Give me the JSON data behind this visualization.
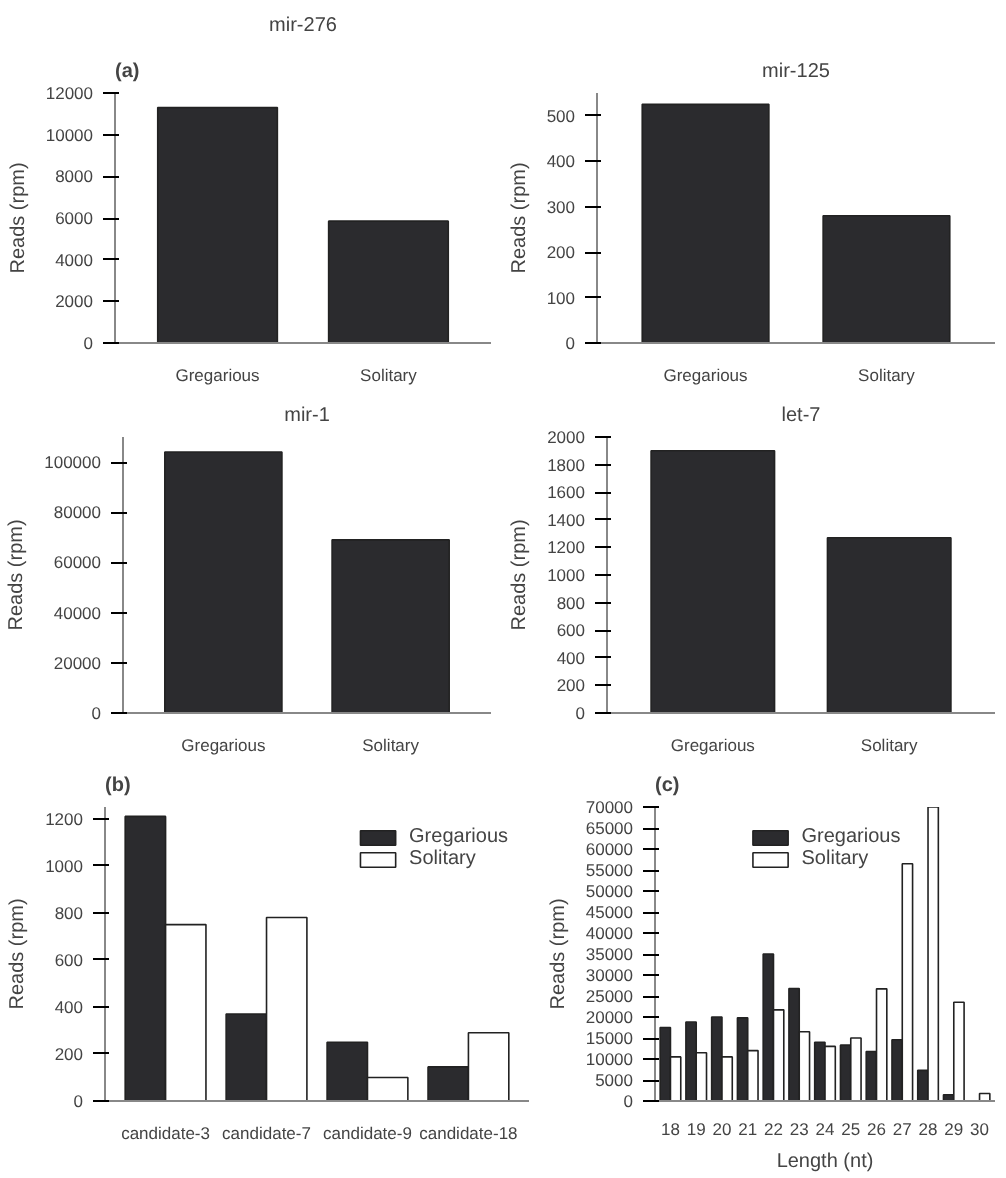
{
  "chart_data": [
    {
      "type": "bar",
      "title": "mir-276",
      "annotations": [
        "(a)"
      ],
      "ylabel": "Reads (rpm)",
      "categories": [
        "Gregarious",
        "Solitary"
      ],
      "values": [
        11300,
        5850
      ],
      "color": "#2b2b2e",
      "ylim": [
        0,
        12000
      ],
      "yticks": [
        0,
        2000,
        4000,
        6000,
        8000,
        10000,
        12000
      ]
    },
    {
      "type": "bar",
      "title": "mir-125",
      "ylabel": "Reads (rpm)",
      "categories": [
        "Gregarious",
        "Solitary"
      ],
      "values": [
        525,
        280
      ],
      "color": "#2b2b2e",
      "ylim": [
        0,
        550
      ],
      "yticks": [
        0,
        100,
        200,
        300,
        400,
        500
      ]
    },
    {
      "type": "bar",
      "title": "mir-1",
      "ylabel": "Reads (rpm)",
      "categories": [
        "Gregarious",
        "Solitary"
      ],
      "values": [
        104000,
        69000
      ],
      "color": "#2b2b2e",
      "ylim": [
        0,
        110000
      ],
      "yticks": [
        0,
        20000,
        40000,
        60000,
        80000,
        100000
      ]
    },
    {
      "type": "bar",
      "title": "let-7",
      "ylabel": "Reads (rpm)",
      "categories": [
        "Gregarious",
        "Solitary"
      ],
      "values": [
        1900,
        1270
      ],
      "color": "#2b2b2e",
      "ylim": [
        0,
        2000
      ],
      "yticks": [
        0,
        200,
        400,
        600,
        800,
        1000,
        1200,
        1400,
        1600,
        1800,
        2000
      ]
    },
    {
      "type": "bar",
      "annotations": [
        "(b)"
      ],
      "ylabel": "Reads (rpm)",
      "categories": [
        "candidate-3",
        "candidate-7",
        "candidate-9",
        "candidate-18"
      ],
      "legend": "top right",
      "ylim": [
        0,
        1250
      ],
      "yticks": [
        0,
        200,
        400,
        600,
        800,
        1000,
        1200
      ],
      "series": [
        {
          "name": "Gregarious",
          "color": "#2b2b2e",
          "values": [
            1210,
            370,
            250,
            145
          ]
        },
        {
          "name": "Solitary",
          "color": "#ffffff",
          "values": [
            750,
            780,
            100,
            290
          ]
        }
      ]
    },
    {
      "type": "bar",
      "annotations": [
        "(c)"
      ],
      "ylabel": "Reads (rpm)",
      "xlabel": "Length (nt)",
      "categories": [
        "18",
        "19",
        "20",
        "21",
        "22",
        "23",
        "24",
        "25",
        "26",
        "27",
        "28",
        "29",
        "30"
      ],
      "legend": "top",
      "ylim": [
        0,
        70000
      ],
      "yticks": [
        0,
        5000,
        10000,
        15000,
        20000,
        25000,
        30000,
        35000,
        40000,
        45000,
        50000,
        55000,
        60000,
        65000,
        70000
      ],
      "series": [
        {
          "name": "Gregarious",
          "color": "#2b2b2e",
          "values": [
            17500,
            18800,
            20000,
            19800,
            35000,
            26800,
            14000,
            13300,
            11800,
            14600,
            7300,
            1500,
            null
          ]
        },
        {
          "name": "Solitary",
          "color": "#ffffff",
          "values": [
            10500,
            11500,
            10500,
            12000,
            21700,
            16500,
            13000,
            15000,
            26700,
            56500,
            70000,
            23500,
            1800
          ]
        }
      ]
    }
  ]
}
